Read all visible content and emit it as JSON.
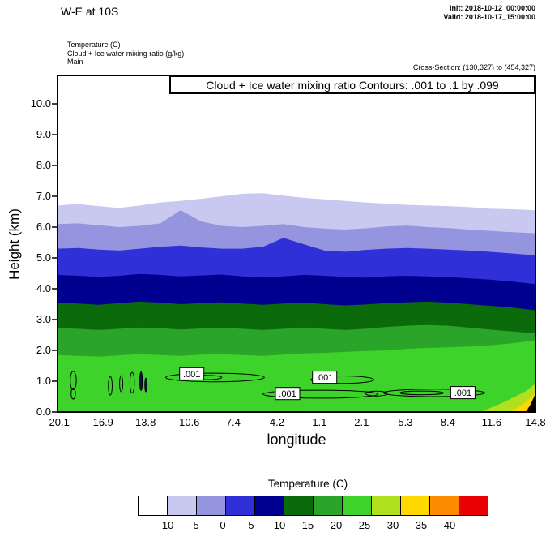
{
  "header": {
    "title": "W-E at 10S",
    "init_line": "Init: 2018-10-12_00:00:00",
    "valid_line": "Valid: 2018-10-17_15:00:00",
    "field_lines": [
      "Temperature  (C)",
      "Cloud + Ice water mixing ratio  (g/kg)",
      "Main"
    ],
    "cross_section_line": "Cross-Section: (130,327) to (454,327)"
  },
  "chart_data": {
    "type": "heatmap",
    "title": "Cloud + Ice water mixing ratio Contours: .001 to .1 by .099",
    "xlabel": "longitude",
    "ylabel": "Height (km)",
    "x_ticks": [
      -20.1,
      -16.9,
      -13.8,
      -10.6,
      -7.4,
      -4.2,
      -1.1,
      2.1,
      5.3,
      8.4,
      11.6,
      14.8
    ],
    "y_ticks": [
      "0.0",
      "1.0",
      "2.0",
      "3.0",
      "4.0",
      "5.0",
      "6.0",
      "7.0",
      "8.0",
      "9.0",
      "10.0"
    ],
    "xlim": [
      -20.1,
      14.8
    ],
    "ylim": [
      0,
      10.92
    ],
    "grid": false,
    "temperature_fill": {
      "background_color": "#ffffff",
      "boundary_lons": [
        -20.1,
        -18.6,
        -17.1,
        -15.6,
        -14.1,
        -12.6,
        -11.1,
        -9.6,
        -8.1,
        -6.6,
        -5.1,
        -3.6,
        -2.1,
        -0.6,
        0.9,
        2.4,
        3.9,
        5.4,
        6.9,
        8.4,
        9.9,
        11.4,
        12.9,
        14.8
      ],
      "bands": [
        {
          "range_c": "-10 to -5",
          "color": "#c8c8f0",
          "heights_km": [
            6.7,
            6.75,
            6.68,
            6.62,
            6.7,
            6.8,
            6.85,
            6.92,
            7.0,
            7.08,
            7.1,
            7.02,
            6.95,
            6.9,
            6.85,
            6.8,
            6.76,
            6.72,
            6.7,
            6.68,
            6.65,
            6.6,
            6.58,
            6.55
          ]
        },
        {
          "range_c": "-5 to 0",
          "color": "#9494df",
          "heights_km": [
            6.1,
            6.12,
            6.06,
            6.0,
            6.04,
            6.12,
            6.55,
            6.18,
            6.04,
            6.0,
            6.04,
            6.1,
            6.0,
            5.95,
            5.92,
            5.96,
            6.02,
            6.05,
            6.0,
            5.97,
            5.92,
            5.88,
            5.84,
            5.8
          ]
        },
        {
          "range_c": "0 to 5",
          "color": "#3030d8",
          "heights_km": [
            5.3,
            5.32,
            5.27,
            5.24,
            5.3,
            5.36,
            5.4,
            5.34,
            5.3,
            5.3,
            5.36,
            5.65,
            5.44,
            5.24,
            5.2,
            5.26,
            5.3,
            5.32,
            5.3,
            5.27,
            5.24,
            5.2,
            5.15,
            5.08
          ]
        },
        {
          "range_c": "5 to 10",
          "color": "#00008e",
          "heights_km": [
            4.45,
            4.42,
            4.38,
            4.42,
            4.48,
            4.45,
            4.4,
            4.43,
            4.46,
            4.4,
            4.36,
            4.4,
            4.45,
            4.42,
            4.38,
            4.36,
            4.4,
            4.42,
            4.4,
            4.38,
            4.34,
            4.3,
            4.24,
            4.15
          ]
        },
        {
          "range_c": "10 to 15",
          "color": "#0b6b0b",
          "heights_km": [
            3.55,
            3.52,
            3.48,
            3.53,
            3.58,
            3.55,
            3.5,
            3.53,
            3.56,
            3.52,
            3.48,
            3.52,
            3.55,
            3.5,
            3.46,
            3.49,
            3.53,
            3.56,
            3.58,
            3.55,
            3.5,
            3.45,
            3.4,
            3.3
          ]
        },
        {
          "range_c": "15 to 20",
          "color": "#2aa52a",
          "heights_km": [
            2.72,
            2.7,
            2.66,
            2.7,
            2.74,
            2.72,
            2.68,
            2.71,
            2.73,
            2.7,
            2.66,
            2.7,
            2.74,
            2.7,
            2.66,
            2.7,
            2.76,
            2.8,
            2.82,
            2.8,
            2.74,
            2.68,
            2.62,
            2.55
          ]
        },
        {
          "range_c": "20 to 25",
          "color": "#3ed32b",
          "heights_km": [
            1.85,
            1.82,
            1.8,
            1.84,
            1.88,
            1.85,
            1.82,
            1.86,
            1.88,
            1.85,
            1.82,
            1.86,
            1.9,
            1.92,
            1.95,
            1.98,
            2.0,
            2.05,
            2.08,
            2.1,
            2.12,
            2.16,
            2.22,
            2.32
          ]
        }
      ],
      "pockets": [
        {
          "range_c": "25 to 30",
          "color": "#b0e01e",
          "points": [
            [
              10.8,
              0
            ],
            [
              11.6,
              0.15
            ],
            [
              12.5,
              0.32
            ],
            [
              13.4,
              0.52
            ],
            [
              14.1,
              0.68
            ],
            [
              14.8,
              0.92
            ],
            [
              14.8,
              0
            ]
          ]
        },
        {
          "range_c": "30 to 35",
          "color": "#ffd800",
          "points": [
            [
              12.9,
              0
            ],
            [
              13.7,
              0.2
            ],
            [
              14.4,
              0.44
            ],
            [
              14.8,
              0.62
            ],
            [
              14.8,
              0
            ]
          ]
        },
        {
          "range_c": "35 to 40",
          "color": "#ff8c00",
          "points": [
            [
              14.0,
              0
            ],
            [
              14.55,
              0.3
            ],
            [
              14.8,
              0.45
            ],
            [
              14.8,
              0
            ]
          ]
        }
      ],
      "terrain": {
        "color": "#000000",
        "points": [
          [
            14.12,
            0
          ],
          [
            14.45,
            0.25
          ],
          [
            14.8,
            0.6
          ],
          [
            14.8,
            0
          ]
        ]
      }
    },
    "cloud_contours": {
      "label": ".001",
      "contour_levels": [
        0.001,
        0.1
      ],
      "label_boxes": [
        {
          "lon": -10.3,
          "km": 1.24
        },
        {
          "lon": -3.3,
          "km": 0.6
        },
        {
          "lon": -0.6,
          "km": 1.13
        },
        {
          "lon": 9.5,
          "km": 0.63
        }
      ],
      "ellipses": [
        {
          "lon": -18.95,
          "km": 1.02,
          "rlon": 0.22,
          "rkm": 0.3
        },
        {
          "lon": -18.95,
          "km": 0.6,
          "rlon": 0.16,
          "rkm": 0.18
        },
        {
          "lon": -16.25,
          "km": 0.85,
          "rlon": 0.14,
          "rkm": 0.3
        },
        {
          "lon": -15.45,
          "km": 0.92,
          "rlon": 0.12,
          "rkm": 0.26
        },
        {
          "lon": -14.65,
          "km": 0.95,
          "rlon": 0.16,
          "rkm": 0.34
        },
        {
          "lon": -14.0,
          "km": 1.0,
          "rlon": 0.09,
          "rkm": 0.3,
          "filled": true
        },
        {
          "lon": -13.65,
          "km": 0.88,
          "rlon": 0.07,
          "rkm": 0.22,
          "filled": true
        },
        {
          "lon": -8.6,
          "km": 1.12,
          "rlon": 3.6,
          "rkm": 0.14
        },
        {
          "lon": -9.3,
          "km": 1.12,
          "rlon": 1.2,
          "rkm": 0.07
        },
        {
          "lon": -0.9,
          "km": 0.58,
          "rlon": 4.2,
          "rkm": 0.13
        },
        {
          "lon": 0.7,
          "km": 1.05,
          "rlon": 2.3,
          "rkm": 0.12
        },
        {
          "lon": 3.2,
          "km": 0.6,
          "rlon": 0.8,
          "rkm": 0.08
        },
        {
          "lon": 7.4,
          "km": 0.62,
          "rlon": 3.7,
          "rkm": 0.12
        },
        {
          "lon": 6.5,
          "km": 0.62,
          "rlon": 1.6,
          "rkm": 0.06
        }
      ]
    },
    "colorbar": {
      "title": "Temperature  (C)",
      "tick_labels": [
        "-10",
        "-5",
        "0",
        "5",
        "10",
        "15",
        "20",
        "25",
        "30",
        "35",
        "40"
      ],
      "colors": [
        "#ffffff",
        "#c8c8f0",
        "#9494df",
        "#3030d8",
        "#00008e",
        "#0b6b0b",
        "#2aa52a",
        "#3ed32b",
        "#b0e01e",
        "#ffd800",
        "#ff8c00",
        "#ea0000"
      ]
    }
  }
}
